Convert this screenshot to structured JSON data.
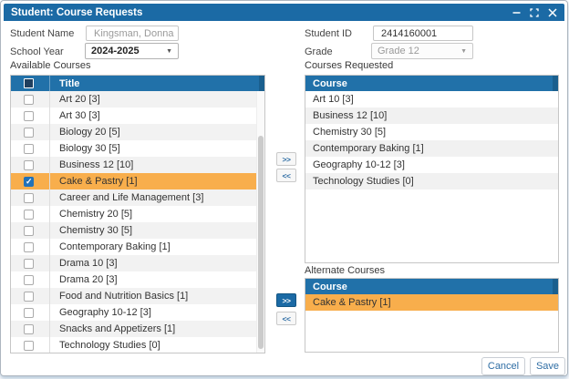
{
  "window": {
    "title": "Student: Course Requests"
  },
  "form": {
    "student_name": {
      "label": "Student Name",
      "value": "Kingsman, Donna"
    },
    "student_id": {
      "label": "Student ID",
      "value": "2414160001"
    },
    "school_year": {
      "label": "School Year",
      "value": "2024-2025"
    },
    "grade": {
      "label": "Grade",
      "value": "Grade 12"
    }
  },
  "available_courses": {
    "label": "Available Courses",
    "column_header": "Title",
    "rows": [
      {
        "title": "Art 20 [3]",
        "checked": false,
        "selected": false
      },
      {
        "title": "Art 30 [3]",
        "checked": false,
        "selected": false
      },
      {
        "title": "Biology 20 [5]",
        "checked": false,
        "selected": false
      },
      {
        "title": "Biology 30 [5]",
        "checked": false,
        "selected": false
      },
      {
        "title": "Business 12 [10]",
        "checked": false,
        "selected": false
      },
      {
        "title": "Cake & Pastry [1]",
        "checked": true,
        "selected": true
      },
      {
        "title": "Career and Life Management [3]",
        "checked": false,
        "selected": false
      },
      {
        "title": "Chemistry 20 [5]",
        "checked": false,
        "selected": false
      },
      {
        "title": "Chemistry 30 [5]",
        "checked": false,
        "selected": false
      },
      {
        "title": "Contemporary Baking [1]",
        "checked": false,
        "selected": false
      },
      {
        "title": "Drama 10 [3]",
        "checked": false,
        "selected": false
      },
      {
        "title": "Drama 20 [3]",
        "checked": false,
        "selected": false
      },
      {
        "title": "Food and Nutrition Basics [1]",
        "checked": false,
        "selected": false
      },
      {
        "title": "Geography 10-12 [3]",
        "checked": false,
        "selected": false
      },
      {
        "title": "Snacks and Appetizers [1]",
        "checked": false,
        "selected": false
      },
      {
        "title": "Technology Studies [0]",
        "checked": false,
        "selected": false
      }
    ]
  },
  "courses_requested": {
    "label": "Courses Requested",
    "column_header": "Course",
    "rows": [
      {
        "title": "Art 10 [3]",
        "selected": false
      },
      {
        "title": "Business 12 [10]",
        "selected": false
      },
      {
        "title": "Chemistry 30 [5]",
        "selected": false
      },
      {
        "title": "Contemporary Baking [1]",
        "selected": true
      },
      {
        "title": "Geography 10-12 [3]",
        "selected": false
      },
      {
        "title": "Technology Studies [0]",
        "selected": false
      }
    ]
  },
  "alternate_courses": {
    "label": "Alternate Courses",
    "column_header": "Course",
    "rows": [
      {
        "title": "Cake & Pastry [1]",
        "selected": true
      }
    ]
  },
  "transfer": {
    "move_right": ">>",
    "move_left": "<<"
  },
  "footer": {
    "cancel": "Cancel",
    "save": "Save"
  },
  "colors": {
    "titlebar_blue": "#1b6aa5",
    "table_header_blue": "#2171a9",
    "selection_orange": "#f8ae4c",
    "accent_blue": "#2e6da4",
    "checked_checkbox_blue": "#2272b9"
  }
}
